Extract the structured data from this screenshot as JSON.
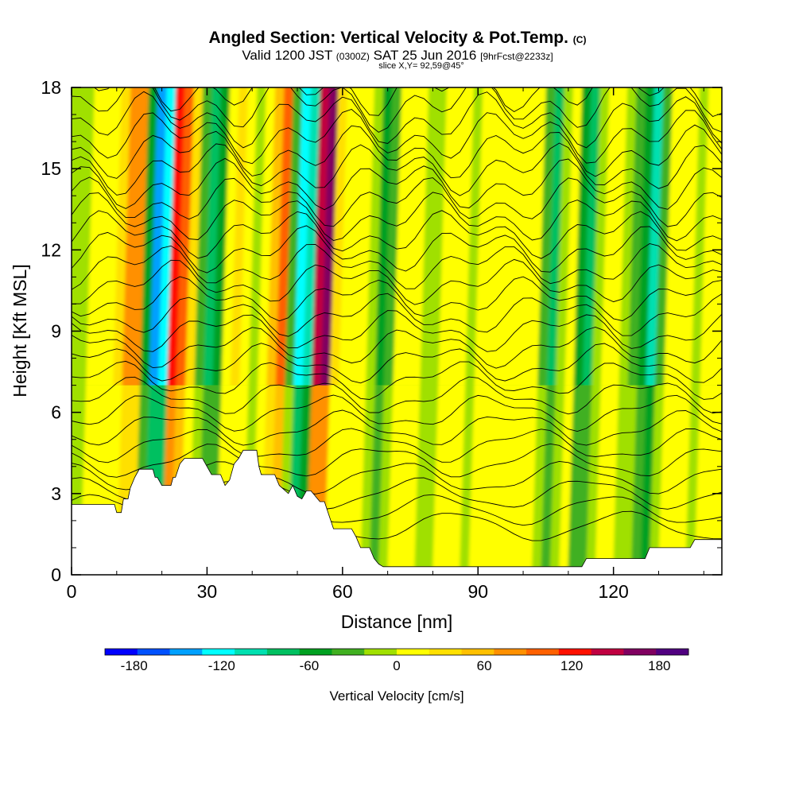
{
  "title": {
    "main": "Angled Section: Vertical Velocity & Pot.Temp.",
    "unit": "(C)"
  },
  "subtitle": {
    "valid": "Valid 1200 JST",
    "utc": "(0300Z)",
    "date": "SAT 25 Jun 2016",
    "fcst": "[9hrFcst@2233z]"
  },
  "slice": "slice X,Y= 92,59@45°",
  "chart_data": {
    "type": "heatmap",
    "xlabel": "Distance [nm]",
    "ylabel": "Height [Kft MSL]",
    "xlim": [
      0,
      144
    ],
    "ylim": [
      0,
      18
    ],
    "x_ticks": [
      "0",
      "30",
      "60",
      "90",
      "120"
    ],
    "x_tick_values": [
      0,
      30,
      60,
      90,
      120
    ],
    "y_ticks": [
      "0",
      "3",
      "6",
      "9",
      "12",
      "15",
      "18"
    ],
    "y_tick_values": [
      0,
      3,
      6,
      9,
      12,
      15,
      18
    ],
    "colorbar": {
      "label": "Vertical Velocity [cm/s]",
      "tick_labels": [
        "-180",
        "-120",
        "-60",
        "0",
        "60",
        "120",
        "180"
      ],
      "tick_values": [
        -180,
        -120,
        -60,
        0,
        60,
        120,
        180
      ],
      "range": [
        -200,
        200
      ],
      "colors": [
        "#0000ff",
        "#0050ff",
        "#00a0ff",
        "#00ffff",
        "#00e0b0",
        "#00c060",
        "#00a020",
        "#40b020",
        "#a0e000",
        "#ffff00",
        "#ffe000",
        "#ffc000",
        "#ff9000",
        "#ff6000",
        "#ff1000",
        "#c00040",
        "#800060",
        "#500080"
      ]
    },
    "columns": [
      {
        "x": 1,
        "w": -10
      },
      {
        "x": 3,
        "w": 15
      },
      {
        "x": 5,
        "w": 20
      },
      {
        "x": 7,
        "w": 10
      },
      {
        "x": 9,
        "w": 40
      },
      {
        "x": 11,
        "w": 70
      },
      {
        "x": 13,
        "w": 80
      },
      {
        "x": 15,
        "w": -60
      },
      {
        "x": 17,
        "w": -150
      },
      {
        "x": 19,
        "w": -130
      },
      {
        "x": 21,
        "w": 125
      },
      {
        "x": 23,
        "w": 110
      },
      {
        "x": 25,
        "w": 40
      },
      {
        "x": 27,
        "w": -30
      },
      {
        "x": 29,
        "w": -70
      },
      {
        "x": 31,
        "w": -50
      },
      {
        "x": 33,
        "w": 10
      },
      {
        "x": 35,
        "w": 30
      },
      {
        "x": 37,
        "w": 15
      },
      {
        "x": 39,
        "w": -10
      },
      {
        "x": 41,
        "w": 20
      },
      {
        "x": 43,
        "w": 60
      },
      {
        "x": 45,
        "w": 110
      },
      {
        "x": 47,
        "w": -40
      },
      {
        "x": 49,
        "w": -130
      },
      {
        "x": 51,
        "w": -110
      },
      {
        "x": 53,
        "w": 150
      },
      {
        "x": 55,
        "w": 160
      },
      {
        "x": 57,
        "w": 40
      },
      {
        "x": 59,
        "w": 10
      },
      {
        "x": 61,
        "w": 20
      },
      {
        "x": 63,
        "w": 5
      },
      {
        "x": 65,
        "w": -20
      },
      {
        "x": 67,
        "w": -50
      },
      {
        "x": 69,
        "w": -30
      },
      {
        "x": 71,
        "w": 10
      },
      {
        "x": 73,
        "w": 15
      },
      {
        "x": 75,
        "w": 10
      },
      {
        "x": 77,
        "w": -10
      },
      {
        "x": 79,
        "w": -20
      },
      {
        "x": 81,
        "w": 5
      },
      {
        "x": 83,
        "w": 10
      },
      {
        "x": 85,
        "w": 15
      },
      {
        "x": 87,
        "w": -10
      },
      {
        "x": 89,
        "w": 5
      },
      {
        "x": 91,
        "w": 20
      },
      {
        "x": 93,
        "w": 15
      },
      {
        "x": 95,
        "w": 0
      },
      {
        "x": 97,
        "w": 5
      },
      {
        "x": 99,
        "w": 10
      },
      {
        "x": 101,
        "w": 5
      },
      {
        "x": 103,
        "w": -30
      },
      {
        "x": 105,
        "w": -80
      },
      {
        "x": 107,
        "w": -20
      },
      {
        "x": 109,
        "w": 20
      },
      {
        "x": 111,
        "w": -60
      },
      {
        "x": 113,
        "w": -80
      },
      {
        "x": 115,
        "w": -10
      },
      {
        "x": 117,
        "w": 15
      },
      {
        "x": 119,
        "w": 20
      },
      {
        "x": 121,
        "w": -10
      },
      {
        "x": 123,
        "w": -30
      },
      {
        "x": 125,
        "w": -60
      },
      {
        "x": 127,
        "w": -110
      },
      {
        "x": 129,
        "w": -40
      },
      {
        "x": 131,
        "w": 10
      },
      {
        "x": 133,
        "w": 15
      },
      {
        "x": 135,
        "w": 5
      },
      {
        "x": 137,
        "w": -5
      },
      {
        "x": 139,
        "w": 10
      },
      {
        "x": 141,
        "w": 15
      },
      {
        "x": 143,
        "w": 10
      }
    ],
    "terrain": [
      [
        0,
        2.6
      ],
      [
        9.5,
        2.6
      ],
      [
        10,
        2.3
      ],
      [
        11,
        2.3
      ],
      [
        11.5,
        2.8
      ],
      [
        12.5,
        2.8
      ],
      [
        13,
        3.2
      ],
      [
        14,
        3.6
      ],
      [
        15,
        3.9
      ],
      [
        18,
        3.9
      ],
      [
        18.5,
        3.6
      ],
      [
        19,
        3.6
      ],
      [
        20,
        3.3
      ],
      [
        22,
        3.3
      ],
      [
        22.5,
        3.6
      ],
      [
        23,
        3.6
      ],
      [
        24,
        4.1
      ],
      [
        25,
        4.3
      ],
      [
        29,
        4.3
      ],
      [
        30,
        4.0
      ],
      [
        31,
        3.7
      ],
      [
        33,
        3.7
      ],
      [
        34,
        3.3
      ],
      [
        35,
        3.5
      ],
      [
        36,
        4.1
      ],
      [
        37,
        4.3
      ],
      [
        38,
        4.6
      ],
      [
        41,
        4.6
      ],
      [
        41.5,
        4.0
      ],
      [
        42,
        3.7
      ],
      [
        45,
        3.7
      ],
      [
        46,
        3.3
      ],
      [
        48,
        3.0
      ],
      [
        49,
        3.3
      ],
      [
        50,
        2.9
      ],
      [
        51,
        2.8
      ],
      [
        52,
        3.1
      ],
      [
        53,
        3.1
      ],
      [
        55,
        2.7
      ],
      [
        56,
        2.7
      ],
      [
        57,
        2.2
      ],
      [
        58,
        1.7
      ],
      [
        62,
        1.7
      ],
      [
        63,
        1.4
      ],
      [
        64,
        1.0
      ],
      [
        66,
        1.0
      ],
      [
        67,
        0.6
      ],
      [
        68,
        0.4
      ],
      [
        69,
        0.3
      ],
      [
        113,
        0.3
      ],
      [
        114,
        0.6
      ],
      [
        127,
        0.6
      ],
      [
        128,
        1.0
      ],
      [
        137,
        1.0
      ],
      [
        138,
        1.3
      ],
      [
        144,
        1.3
      ]
    ],
    "theta_levels": [
      10,
      12,
      14,
      16,
      18,
      20,
      22,
      24,
      26,
      28,
      30,
      32,
      34,
      36,
      38,
      40,
      42,
      44,
      46,
      48,
      50,
      52,
      54,
      56,
      58,
      60,
      62,
      64
    ]
  }
}
